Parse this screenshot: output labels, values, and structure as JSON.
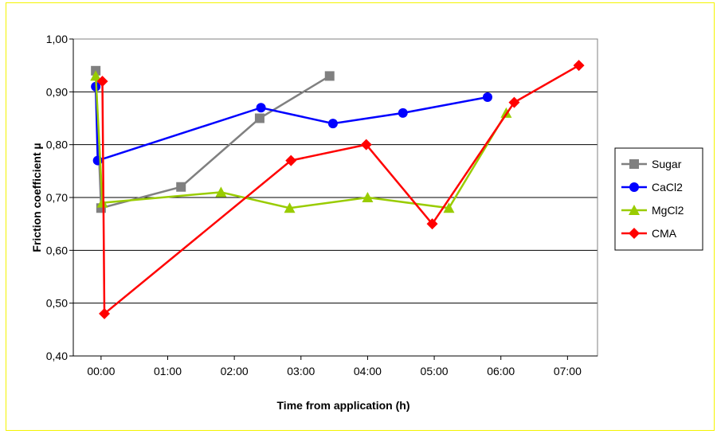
{
  "chart_data": {
    "type": "line",
    "title": "",
    "xlabel": "Time from application (h)",
    "ylabel": "Friction coefficient µ",
    "xlim": [
      -0.4167,
      7.45
    ],
    "ylim": [
      0.4,
      1.0
    ],
    "x_ticks": [
      {
        "value": 0,
        "label": "00:00"
      },
      {
        "value": 1,
        "label": "01:00"
      },
      {
        "value": 2,
        "label": "02:00"
      },
      {
        "value": 3,
        "label": "03:00"
      },
      {
        "value": 4,
        "label": "04:00"
      },
      {
        "value": 5,
        "label": "05:00"
      },
      {
        "value": 6,
        "label": "06:00"
      },
      {
        "value": 7,
        "label": "07:00"
      }
    ],
    "y_ticks": [
      {
        "value": 0.4,
        "label": "0,40"
      },
      {
        "value": 0.5,
        "label": "0,50"
      },
      {
        "value": 0.6,
        "label": "0,60"
      },
      {
        "value": 0.7,
        "label": "0,70"
      },
      {
        "value": 0.8,
        "label": "0,80"
      },
      {
        "value": 0.9,
        "label": "0,90"
      },
      {
        "value": 1.0,
        "label": "1,00"
      }
    ],
    "grid": true,
    "legend_position": "right",
    "series": [
      {
        "name": "Sugar",
        "color": "#808080",
        "marker": "square",
        "points": [
          [
            -0.08,
            0.94
          ],
          [
            0.0,
            0.68
          ],
          [
            1.2,
            0.72
          ],
          [
            2.38,
            0.85
          ],
          [
            3.43,
            0.93
          ]
        ]
      },
      {
        "name": "CaCl2",
        "color": "#0000ff",
        "marker": "circle",
        "points": [
          [
            -0.08,
            0.91
          ],
          [
            -0.05,
            0.77
          ],
          [
            2.4,
            0.87
          ],
          [
            3.48,
            0.84
          ],
          [
            4.53,
            0.86
          ],
          [
            5.8,
            0.89
          ]
        ]
      },
      {
        "name": "MgCl2",
        "color": "#99cc00",
        "marker": "triangle",
        "points": [
          [
            -0.08,
            0.93
          ],
          [
            0.02,
            0.69
          ],
          [
            1.8,
            0.71
          ],
          [
            2.83,
            0.68
          ],
          [
            4.0,
            0.7
          ],
          [
            5.22,
            0.68
          ],
          [
            6.08,
            0.86
          ]
        ]
      },
      {
        "name": "CMA",
        "color": "#ff0000",
        "marker": "diamond",
        "points": [
          [
            0.02,
            0.92
          ],
          [
            0.05,
            0.48
          ],
          [
            2.85,
            0.77
          ],
          [
            3.98,
            0.8
          ],
          [
            4.97,
            0.65
          ],
          [
            6.2,
            0.88
          ],
          [
            7.17,
            0.95
          ]
        ]
      }
    ]
  }
}
